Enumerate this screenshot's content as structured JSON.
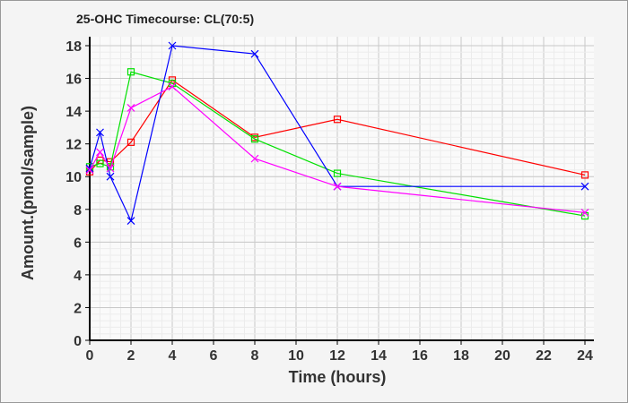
{
  "chart_data": {
    "type": "line",
    "title": "25-OHC Timecourse: CL(70:5)",
    "xlabel": "Time (hours)",
    "ylabel": "Amount.(pmol/sample)",
    "xlim": [
      0,
      24
    ],
    "ylim": [
      0,
      18
    ],
    "xticks": [
      "0",
      "2",
      "4",
      "6",
      "8",
      "10",
      "12",
      "14",
      "16",
      "18",
      "20",
      "22",
      "24"
    ],
    "yticks": [
      "0",
      "2",
      "4",
      "6",
      "8",
      "10",
      "12",
      "14",
      "16",
      "18"
    ],
    "grid": true,
    "x": [
      0,
      0.5,
      1,
      2,
      4,
      8,
      12,
      24
    ],
    "series": [
      {
        "name": "red",
        "color": "#ff0000",
        "marker": "square",
        "values": [
          10.3,
          11.0,
          10.9,
          12.1,
          15.9,
          12.4,
          13.5,
          10.1
        ]
      },
      {
        "name": "green",
        "color": "#00e000",
        "marker": "square",
        "values": [
          10.6,
          10.8,
          10.6,
          16.4,
          15.7,
          12.3,
          10.2,
          7.6
        ]
      },
      {
        "name": "blue",
        "color": "#0000ff",
        "marker": "x",
        "values": [
          10.5,
          12.7,
          10.0,
          7.3,
          18.0,
          17.5,
          9.4,
          9.4
        ]
      },
      {
        "name": "magenta",
        "color": "#ff00ff",
        "marker": "x",
        "values": [
          10.4,
          11.5,
          10.5,
          14.2,
          15.5,
          11.1,
          9.4,
          7.8
        ]
      }
    ]
  }
}
